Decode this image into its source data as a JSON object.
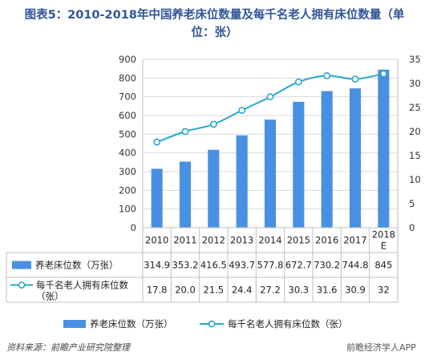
{
  "title_line1": "图表5：2010-2018年中国养老床位数量及每千名老人拥有床位数量（单",
  "title_line2": "位：张）",
  "source": "资料来源：前瞻产业研究院整理",
  "watermark": "前瞻经济学人APP",
  "colors": {
    "bar": "#4a90e2",
    "line": "#2aa7c9",
    "title": "#2f5597"
  },
  "chart_data": {
    "type": "bar",
    "categories": [
      "2010",
      "2011",
      "2012",
      "2013",
      "2014",
      "2015",
      "2016",
      "2017",
      "2018E"
    ],
    "category_labels": [
      [
        "2010"
      ],
      [
        "2011"
      ],
      [
        "2012"
      ],
      [
        "2013"
      ],
      [
        "2014"
      ],
      [
        "2015"
      ],
      [
        "2016"
      ],
      [
        "2017"
      ],
      [
        "2018",
        "E"
      ]
    ],
    "y_left_ticks": [
      0,
      100,
      200,
      300,
      400,
      500,
      600,
      700,
      800,
      900
    ],
    "y_right_ticks": [
      0,
      5,
      10,
      15,
      20,
      25,
      30,
      35
    ],
    "ylim_left": [
      0,
      900
    ],
    "ylim_right": [
      0,
      35
    ],
    "series": [
      {
        "name": "养老床位数（万张）",
        "table_label": [
          "养老床位数（万张）"
        ],
        "type": "bar",
        "axis": "left",
        "values": [
          314.9,
          353.2,
          416.5,
          493.7,
          577.8,
          672.7,
          730.2,
          744.8,
          845
        ],
        "labels": [
          "314.9",
          "353.2",
          "416.5",
          "493.7",
          "577.8",
          "672.7",
          "730.2",
          "744.8",
          "845"
        ]
      },
      {
        "name": "每千名老人拥有床位数（张）",
        "table_label": [
          "每千名老人拥有床位数",
          "（张）"
        ],
        "type": "line",
        "axis": "right",
        "values": [
          17.8,
          20.0,
          21.5,
          24.4,
          27.2,
          30.3,
          31.6,
          30.9,
          32
        ],
        "labels": [
          "17.8",
          "20.0",
          "21.5",
          "24.4",
          "27.2",
          "30.3",
          "31.6",
          "30.9",
          "32"
        ]
      }
    ],
    "legend_position": "bottom"
  }
}
